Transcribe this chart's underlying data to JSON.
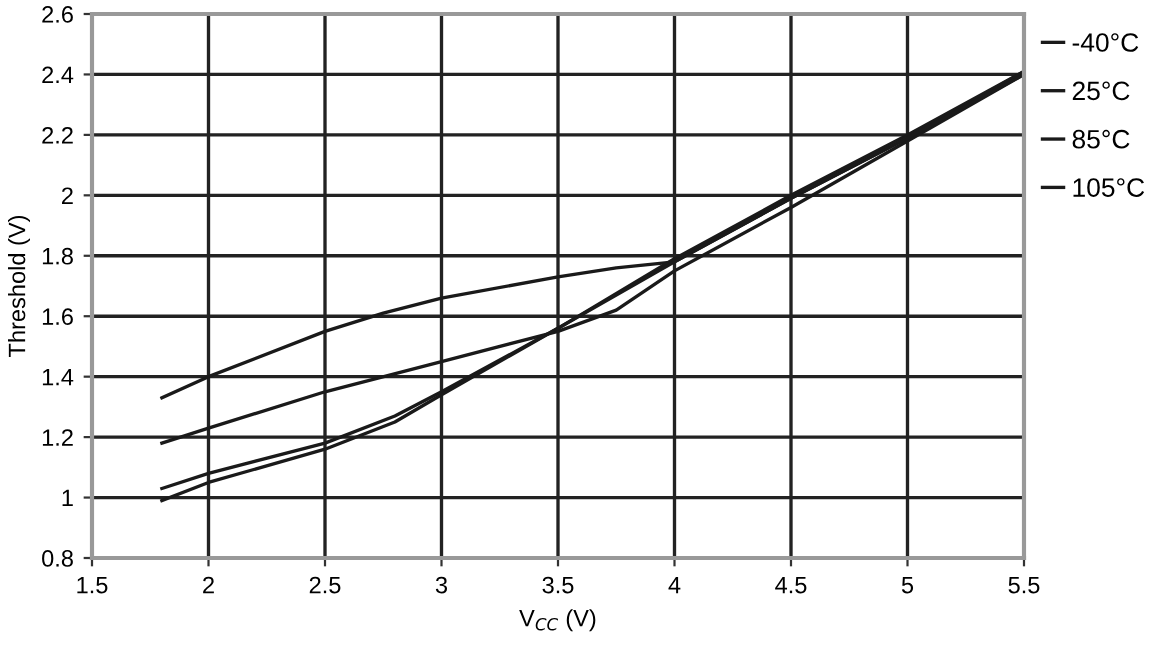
{
  "chart_data": {
    "type": "line",
    "xlabel": "V$_{CC}$ (V)",
    "ylabel": "Threshold (V)",
    "xlim": [
      1.5,
      5.5
    ],
    "ylim": [
      0.8,
      2.6
    ],
    "xticks": [
      1.5,
      2,
      2.5,
      3,
      3.5,
      4,
      4.5,
      5,
      5.5
    ],
    "yticks": [
      0.8,
      1,
      1.2,
      1.4,
      1.6,
      1.8,
      2,
      2.2,
      2.4,
      2.6
    ],
    "grid": true,
    "marker": "none",
    "line_style": "solid",
    "legend": "right",
    "series": [
      {
        "name": "-40°C",
        "color": "#1a1a1a",
        "x": [
          1.8,
          2.0,
          2.5,
          2.75,
          3.0,
          3.5,
          3.75,
          4.0,
          4.5,
          5.0,
          5.5
        ],
        "values": [
          1.33,
          1.4,
          1.55,
          1.61,
          1.66,
          1.73,
          1.76,
          1.78,
          1.99,
          2.19,
          2.41
        ]
      },
      {
        "name": "25°C",
        "color": "#1a1a1a",
        "x": [
          1.8,
          2.0,
          2.5,
          3.0,
          3.5,
          3.75,
          4.0,
          4.5,
          5.0,
          5.5
        ],
        "values": [
          1.18,
          1.23,
          1.35,
          1.45,
          1.55,
          1.62,
          1.75,
          1.96,
          2.18,
          2.4
        ]
      },
      {
        "name": "85°C",
        "color": "#1a1a1a",
        "x": [
          1.8,
          2.0,
          2.5,
          2.8,
          3.0,
          3.5,
          4.0,
          4.5,
          5.0,
          5.5
        ],
        "values": [
          1.03,
          1.08,
          1.18,
          1.27,
          1.35,
          1.56,
          1.79,
          2.0,
          2.2,
          2.41
        ]
      },
      {
        "name": "105°C",
        "color": "#1a1a1a",
        "x": [
          1.8,
          2.0,
          2.5,
          2.8,
          3.0,
          3.5,
          4.0,
          4.5,
          5.0,
          5.5
        ],
        "values": [
          0.99,
          1.05,
          1.16,
          1.25,
          1.34,
          1.56,
          1.78,
          1.99,
          2.19,
          2.4
        ]
      }
    ]
  }
}
